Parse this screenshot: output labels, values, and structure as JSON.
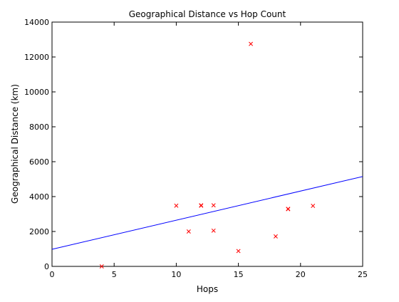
{
  "chart_data": {
    "type": "scatter",
    "title": "Geographical Distance vs Hop Count",
    "xlabel": "Hops",
    "ylabel": "Geographical Distance (km)",
    "xlim": [
      0,
      25
    ],
    "ylim": [
      0,
      14000
    ],
    "xticks": [
      0,
      5,
      10,
      15,
      20,
      25
    ],
    "yticks": [
      0,
      2000,
      4000,
      6000,
      8000,
      10000,
      12000,
      14000
    ],
    "grid": false,
    "series": [
      {
        "marker": "x",
        "color": "#ff0000",
        "x": [
          4,
          10,
          11,
          12,
          12,
          13,
          13,
          15,
          16,
          18,
          19,
          19,
          21
        ],
        "y": [
          0,
          3480,
          2000,
          3500,
          3480,
          3500,
          2050,
          880,
          12750,
          1720,
          3280,
          3300,
          3470
        ]
      }
    ],
    "trendline": {
      "color": "#0000ff",
      "x": [
        0,
        25
      ],
      "y": [
        980,
        5150
      ]
    }
  }
}
